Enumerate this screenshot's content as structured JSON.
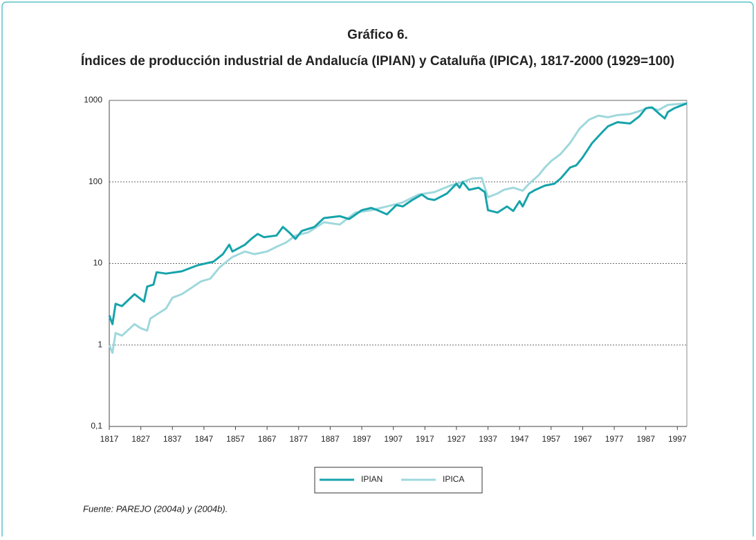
{
  "chart_data": {
    "type": "line",
    "title": "Gráfico 6.",
    "subtitle": "Índices de producción industrial de Andalucía (IPIAN) y Cataluña (IPICA), 1817-2000 (1929=100)",
    "source": "Fuente: PAREJO (2004a) y (2004b).",
    "log_scale": true,
    "grid": true,
    "legend": "bottom",
    "xlim": [
      1817,
      2000
    ],
    "xticks": [
      1817,
      1827,
      1837,
      1847,
      1857,
      1867,
      1877,
      1887,
      1897,
      1907,
      1917,
      1927,
      1937,
      1947,
      1957,
      1967,
      1977,
      1987,
      1997
    ],
    "ylim": [
      0.1,
      1000
    ],
    "yticks": [
      {
        "value": 0.1,
        "label": "0,1"
      },
      1,
      10,
      100,
      1000
    ],
    "series": [
      {
        "name": "IPIAN",
        "color": "#16a3ab",
        "x": [
          1817,
          1818,
          1819,
          1821,
          1825,
          1828,
          1829,
          1831,
          1832,
          1835,
          1840,
          1845,
          1850,
          1853,
          1855,
          1856,
          1860,
          1862,
          1864,
          1866,
          1870,
          1872,
          1874,
          1876,
          1878,
          1882,
          1885,
          1890,
          1893,
          1897,
          1900,
          1902,
          1905,
          1908,
          1910,
          1913,
          1916,
          1918,
          1920,
          1924,
          1927,
          1928,
          1929,
          1931,
          1934,
          1936,
          1937,
          1940,
          1943,
          1945,
          1947,
          1948,
          1950,
          1952,
          1955,
          1958,
          1960,
          1963,
          1965,
          1967,
          1970,
          1973,
          1975,
          1978,
          1982,
          1985,
          1987,
          1989,
          1991,
          1993,
          1994,
          1996,
          2000
        ],
        "values": [
          2.3,
          1.8,
          3.2,
          3.0,
          4.2,
          3.4,
          5.2,
          5.5,
          7.8,
          7.5,
          8.0,
          9.5,
          10.5,
          13,
          17,
          14,
          17,
          20,
          23,
          21,
          22,
          28,
          24,
          20,
          25,
          28,
          36,
          38,
          35,
          45,
          48,
          45,
          40,
          52,
          50,
          60,
          70,
          62,
          60,
          72,
          95,
          85,
          100,
          80,
          85,
          75,
          45,
          42,
          50,
          44,
          58,
          50,
          72,
          80,
          90,
          95,
          110,
          150,
          160,
          200,
          300,
          400,
          480,
          540,
          520,
          640,
          800,
          820,
          700,
          600,
          720,
          800,
          920
        ]
      },
      {
        "name": "IPICA",
        "color": "#9fd8dc",
        "x": [
          1817,
          1818,
          1819,
          1821,
          1825,
          1827,
          1829,
          1830,
          1833,
          1835,
          1837,
          1840,
          1843,
          1846,
          1849,
          1852,
          1856,
          1860,
          1863,
          1867,
          1870,
          1873,
          1876,
          1880,
          1885,
          1890,
          1895,
          1900,
          1905,
          1910,
          1915,
          1920,
          1925,
          1929,
          1932,
          1935,
          1937,
          1940,
          1942,
          1945,
          1948,
          1950,
          1953,
          1955,
          1957,
          1960,
          1963,
          1966,
          1969,
          1972,
          1975,
          1978,
          1982,
          1985,
          1988,
          1991,
          1994,
          1997,
          2000
        ],
        "values": [
          1.0,
          0.8,
          1.4,
          1.3,
          1.8,
          1.6,
          1.5,
          2.1,
          2.5,
          2.8,
          3.8,
          4.2,
          5.0,
          6.0,
          6.5,
          9.0,
          12,
          14,
          13,
          14,
          16,
          18,
          22,
          24,
          32,
          30,
          42,
          45,
          50,
          56,
          70,
          75,
          90,
          100,
          110,
          112,
          65,
          72,
          80,
          85,
          78,
          95,
          120,
          150,
          180,
          220,
          300,
          450,
          580,
          650,
          620,
          660,
          680,
          740,
          820,
          760,
          880,
          900,
          920
        ]
      }
    ]
  }
}
